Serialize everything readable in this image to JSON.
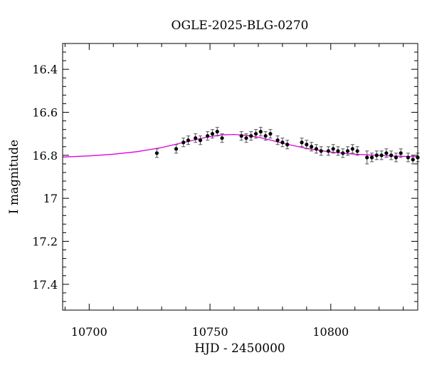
{
  "chart_data": {
    "type": "scatter",
    "title": "OGLE-2025-BLG-0270",
    "xlabel": "HJD - 2450000",
    "ylabel": "I magnitude",
    "xlim": [
      10689,
      10836
    ],
    "ylim": [
      17.52,
      16.28
    ],
    "y_inverted": true,
    "grid": false,
    "xticks": [
      10700,
      10750,
      10800
    ],
    "xtick_labels": [
      "10700",
      "10750",
      "10800"
    ],
    "yticks": [
      16.4,
      16.6,
      16.8,
      17,
      17.2,
      17.4
    ],
    "ytick_labels": [
      "16.4",
      "16.6",
      "16.8",
      "17",
      "17.2",
      "17.4"
    ],
    "colors": {
      "data": "#000000",
      "errorbar": "#555555",
      "model": "#e100e1",
      "axes": "#000000"
    },
    "series": [
      {
        "type": "errorbar",
        "x": [
          10728,
          10736,
          10739,
          10741,
          10744,
          10746,
          10749,
          10751,
          10753,
          10755,
          10763,
          10765,
          10767,
          10769,
          10771,
          10773,
          10775,
          10778,
          10780,
          10782,
          10788,
          10790,
          10792,
          10794,
          10796,
          10799,
          10801,
          10803,
          10805,
          10807,
          10809,
          10811,
          10815,
          10817,
          10819,
          10821,
          10823,
          10825,
          10827,
          10829,
          10832,
          10834,
          10836
        ],
        "y": [
          16.79,
          16.77,
          16.74,
          16.73,
          16.72,
          16.73,
          16.71,
          16.7,
          16.69,
          16.72,
          16.71,
          16.72,
          16.71,
          16.7,
          16.69,
          16.71,
          16.7,
          16.73,
          16.74,
          16.75,
          16.74,
          16.75,
          16.76,
          16.77,
          16.78,
          16.78,
          16.77,
          16.78,
          16.79,
          16.78,
          16.77,
          16.78,
          16.81,
          16.81,
          16.8,
          16.8,
          16.79,
          16.8,
          16.81,
          16.79,
          16.81,
          16.82,
          16.81
        ],
        "err": [
          0.02,
          0.02,
          0.02,
          0.02,
          0.02,
          0.02,
          0.02,
          0.02,
          0.02,
          0.02,
          0.02,
          0.02,
          0.02,
          0.02,
          0.02,
          0.02,
          0.02,
          0.02,
          0.02,
          0.02,
          0.02,
          0.02,
          0.02,
          0.02,
          0.02,
          0.02,
          0.02,
          0.02,
          0.02,
          0.02,
          0.02,
          0.02,
          0.03,
          0.02,
          0.02,
          0.02,
          0.02,
          0.02,
          0.02,
          0.02,
          0.02,
          0.02,
          0.02
        ]
      },
      {
        "type": "line",
        "x": [
          10689,
          10700,
          10710,
          10720,
          10730,
          10740,
          10745,
          10750,
          10755,
          10760,
          10765,
          10770,
          10775,
          10780,
          10790,
          10800,
          10810,
          10820,
          10830,
          10836
        ],
        "y": [
          16.808,
          16.803,
          16.795,
          16.783,
          16.764,
          16.738,
          16.725,
          16.713,
          16.705,
          16.703,
          16.707,
          16.716,
          16.729,
          16.744,
          16.768,
          16.785,
          16.795,
          16.801,
          16.805,
          16.807
        ]
      }
    ]
  }
}
